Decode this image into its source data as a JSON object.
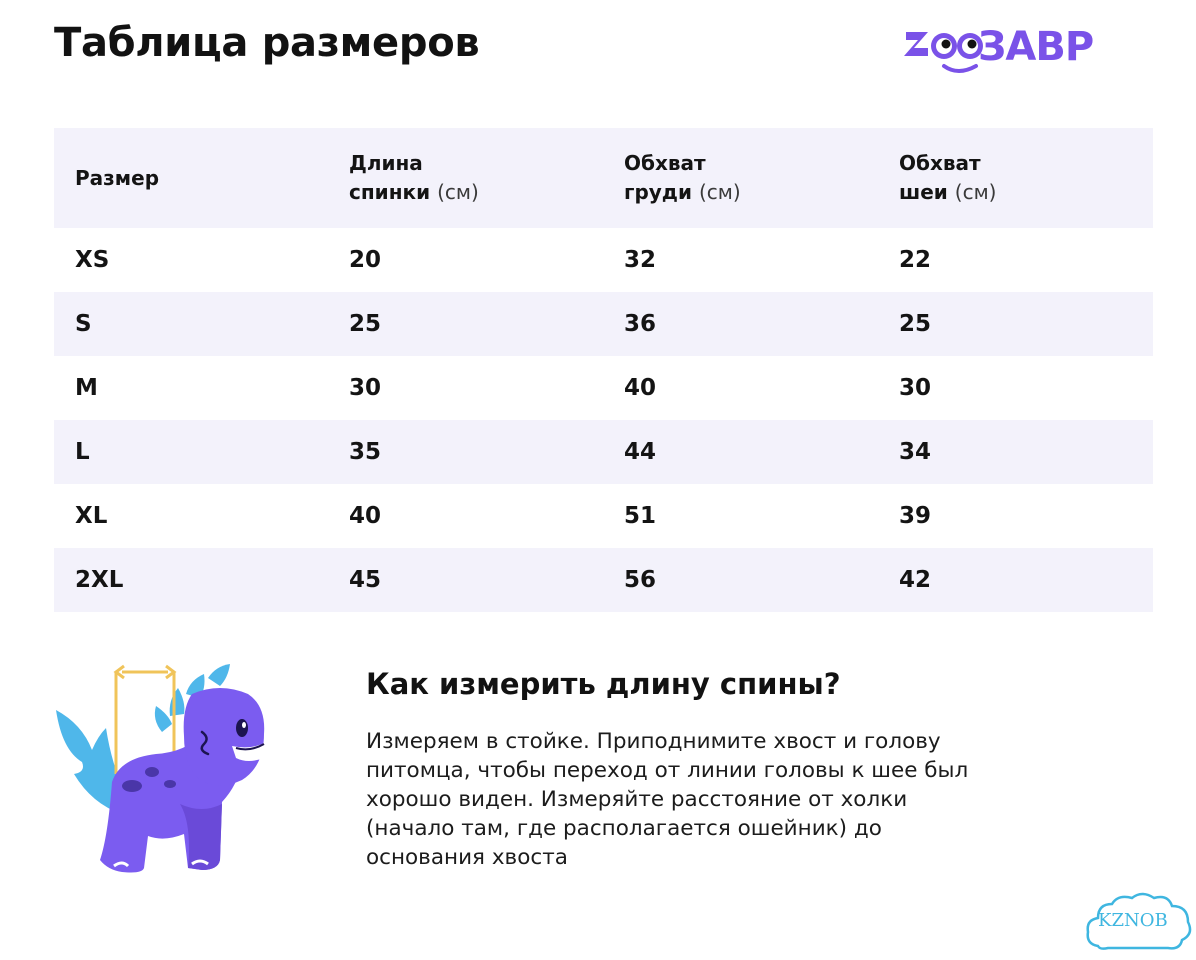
{
  "page": {
    "title": "Таблица размеров"
  },
  "brand": {
    "logo_text": "ЗООЗАВР",
    "logo_text_visible": "ЗАВР",
    "color": "#7a52e8"
  },
  "table": {
    "headers": [
      {
        "main": "Размер",
        "main2": "",
        "unit": ""
      },
      {
        "main": "Длина",
        "main2": "спинки",
        "unit": "(см)"
      },
      {
        "main": "Обхват",
        "main2": "груди",
        "unit": "(см)"
      },
      {
        "main": "Обхват",
        "main2": "шеи",
        "unit": "(см)"
      }
    ],
    "rows": [
      [
        "XS",
        "20",
        "32",
        "22"
      ],
      [
        "S",
        "25",
        "36",
        "25"
      ],
      [
        "M",
        "30",
        "40",
        "30"
      ],
      [
        "L",
        "35",
        "44",
        "34"
      ],
      [
        "XL",
        "40",
        "51",
        "39"
      ],
      [
        "2XL",
        "45",
        "56",
        "42"
      ]
    ],
    "shade_color": "#f3f2fb"
  },
  "howto": {
    "title": "Как измерить длину спины?",
    "text_lines": [
      "Измеряем в стойке. Приподнимите хвост и голову",
      "питомца, чтобы переход от линии головы к шее был",
      "хорошо виден. Измеряйте расстояние от холки",
      "(начало там, где располагается ошейник) до",
      "основания хвоста"
    ]
  },
  "illustration": {
    "subject": "dinosaur-mascot-icon",
    "body_color": "#7b5cf0",
    "accent_color": "#4fb7ea",
    "measure_color": "#f0c45a"
  },
  "watermark": {
    "text": "KZNOB",
    "color": "#3fb6e0"
  }
}
